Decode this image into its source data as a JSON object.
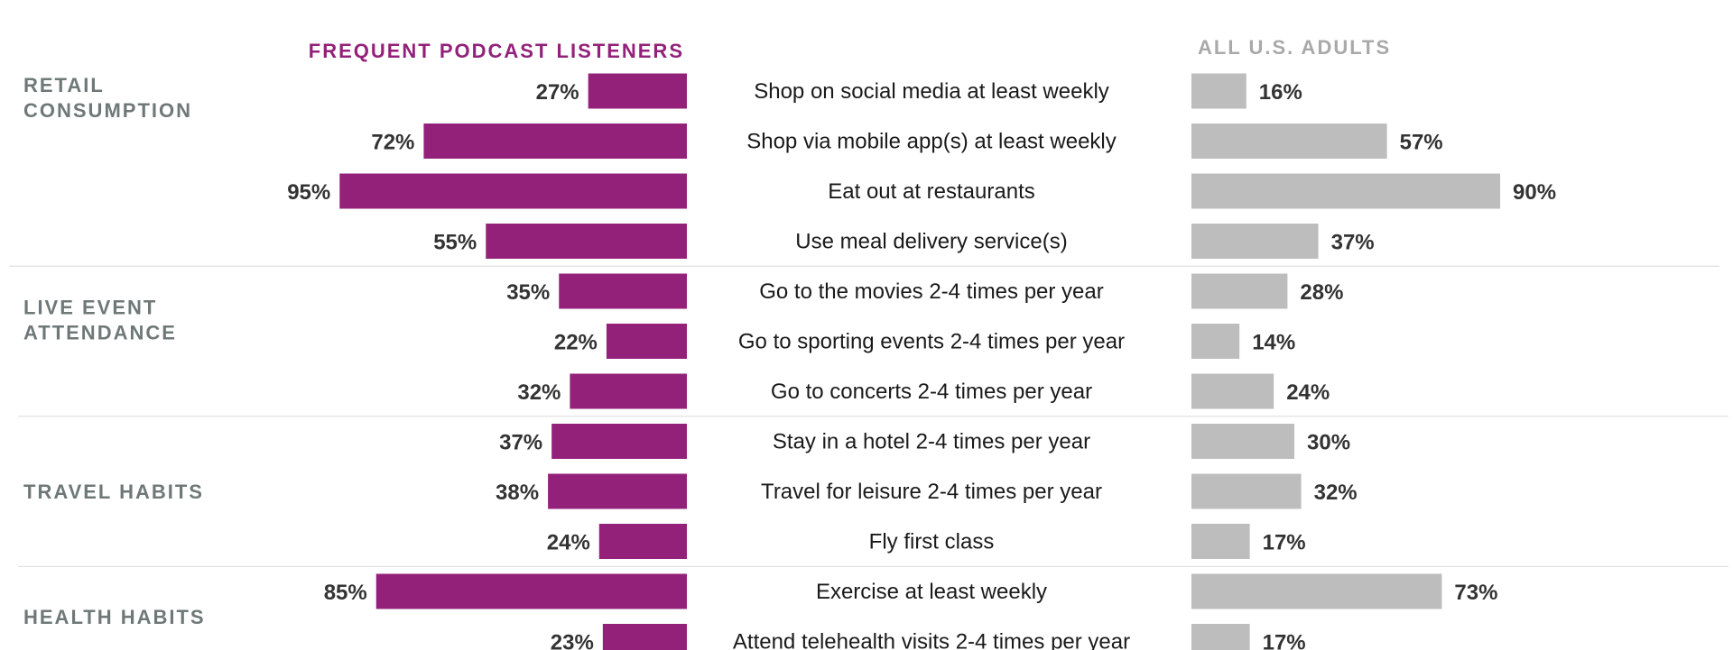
{
  "chart_data": {
    "type": "bar",
    "left_header": "FREQUENT PODCAST LISTENERS",
    "right_header": "ALL U.S. ADULTS",
    "groups": [
      {
        "label_lines": [
          "RETAIL",
          "CONSUMPTION"
        ],
        "rows": [
          0,
          3
        ]
      },
      {
        "label_lines": [
          "LIVE EVENT",
          "ATTENDANCE"
        ],
        "rows": [
          4,
          6
        ]
      },
      {
        "label_lines": [
          "TRAVEL HABITS"
        ],
        "rows": [
          7,
          9
        ]
      },
      {
        "label_lines": [
          "HEALTH HABITS"
        ],
        "rows": [
          10,
          11
        ]
      }
    ],
    "categories": [
      "Shop on social media at least weekly",
      "Shop via mobile app(s) at least weekly",
      "Eat out at restaurants",
      "Use meal delivery service(s)",
      "Go to the movies 2-4 times per year",
      "Go to sporting events 2-4 times per year",
      "Go to concerts 2-4 times per year",
      "Stay in a hotel 2-4 times per year",
      "Travel for leisure 2-4 times per year",
      "Fly first class",
      "Exercise at least weekly",
      "Attend telehealth visits 2-4 times per year"
    ],
    "series": [
      {
        "name": "FREQUENT PODCAST LISTENERS",
        "values": [
          27,
          72,
          95,
          55,
          35,
          22,
          32,
          37,
          38,
          24,
          85,
          23
        ],
        "color": "#93217a"
      },
      {
        "name": "ALL U.S. ADULTS",
        "values": [
          16,
          57,
          90,
          37,
          28,
          14,
          24,
          30,
          32,
          17,
          73,
          17
        ],
        "color": "#bdbdbd"
      }
    ],
    "value_suffix": "%",
    "xlim": [
      0,
      100
    ],
    "header_colors": {
      "left": "#93217a",
      "right": "#a9a9a9"
    },
    "separator_color": "#d9d9d9"
  }
}
